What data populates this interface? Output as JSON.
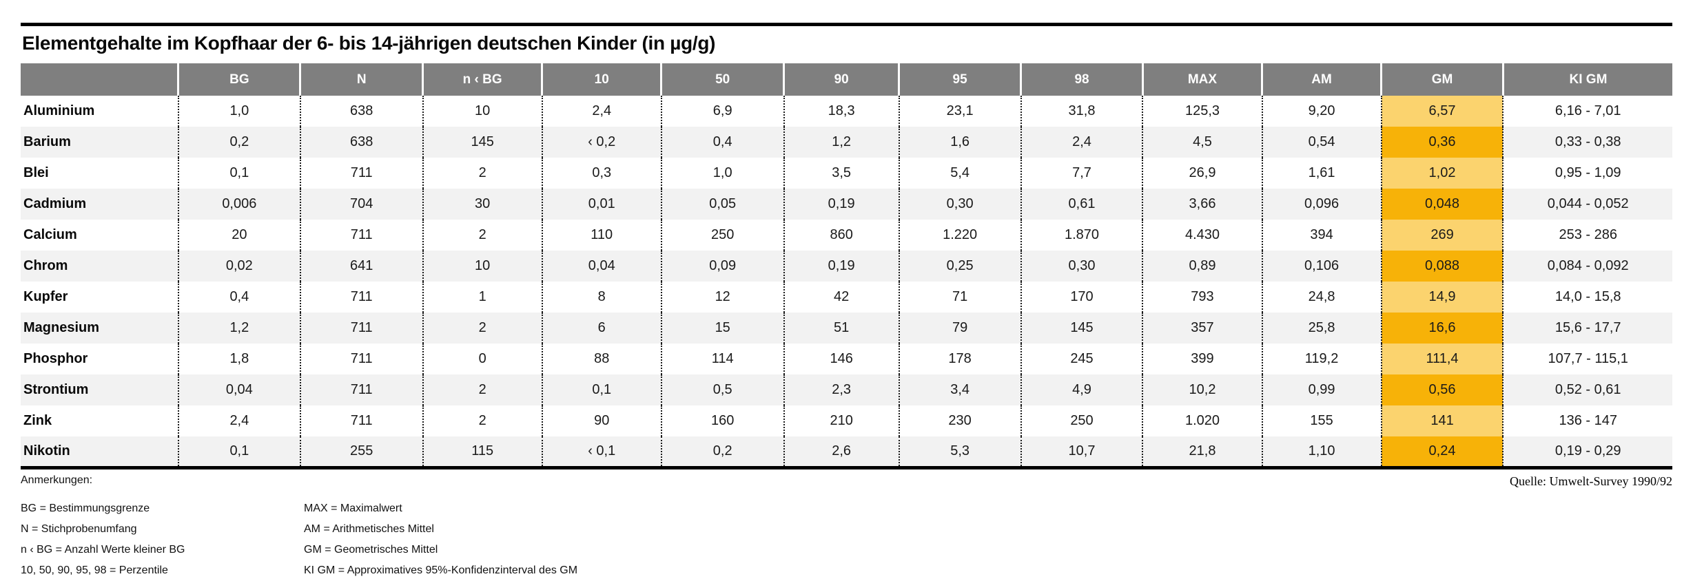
{
  "title": "Elementgehalte im Kopfhaar der 6- bis 14-jährigen deutschen Kinder (in µg/g)",
  "source": "Quelle: Umwelt-Survey 1990/92",
  "colors": {
    "header_bg": "#7f7f7f",
    "row_alt_bg": "#f2f2f2",
    "gm_highlight_light": "#fbd36e",
    "gm_highlight_dark": "#f7b208"
  },
  "table": {
    "columns": [
      "",
      "BG",
      "N",
      "n ‹ BG",
      "10",
      "50",
      "90",
      "95",
      "98",
      "MAX",
      "AM",
      "GM",
      "KI GM"
    ],
    "col_widths_pct": [
      9.55,
      7.38,
      7.42,
      7.22,
      7.22,
      7.42,
      6.97,
      7.38,
      7.38,
      7.22,
      7.22,
      7.38,
      10.24
    ],
    "rows": [
      {
        "name": "Aluminium",
        "values": [
          "1,0",
          "638",
          "10",
          "2,4",
          "6,9",
          "18,3",
          "23,1",
          "31,8",
          "125,3",
          "9,20",
          "6,57",
          "6,16 - 7,01"
        ]
      },
      {
        "name": "Barium",
        "values": [
          "0,2",
          "638",
          "145",
          "‹ 0,2",
          "0,4",
          "1,2",
          "1,6",
          "2,4",
          "4,5",
          "0,54",
          "0,36",
          "0,33 - 0,38"
        ]
      },
      {
        "name": "Blei",
        "values": [
          "0,1",
          "711",
          "2",
          "0,3",
          "1,0",
          "3,5",
          "5,4",
          "7,7",
          "26,9",
          "1,61",
          "1,02",
          "0,95 - 1,09"
        ]
      },
      {
        "name": "Cadmium",
        "values": [
          "0,006",
          "704",
          "30",
          "0,01",
          "0,05",
          "0,19",
          "0,30",
          "0,61",
          "3,66",
          "0,096",
          "0,048",
          "0,044 - 0,052"
        ]
      },
      {
        "name": "Calcium",
        "values": [
          "20",
          "711",
          "2",
          "110",
          "250",
          "860",
          "1.220",
          "1.870",
          "4.430",
          "394",
          "269",
          "253 - 286"
        ]
      },
      {
        "name": "Chrom",
        "values": [
          "0,02",
          "641",
          "10",
          "0,04",
          "0,09",
          "0,19",
          "0,25",
          "0,30",
          "0,89",
          "0,106",
          "0,088",
          "0,084 - 0,092"
        ]
      },
      {
        "name": "Kupfer",
        "values": [
          "0,4",
          "711",
          "1",
          "8",
          "12",
          "42",
          "71",
          "170",
          "793",
          "24,8",
          "14,9",
          "14,0 - 15,8"
        ]
      },
      {
        "name": "Magnesium",
        "values": [
          "1,2",
          "711",
          "2",
          "6",
          "15",
          "51",
          "79",
          "145",
          "357",
          "25,8",
          "16,6",
          "15,6 - 17,7"
        ]
      },
      {
        "name": "Phosphor",
        "values": [
          "1,8",
          "711",
          "0",
          "88",
          "114",
          "146",
          "178",
          "245",
          "399",
          "119,2",
          "111,4",
          "107,7 - 115,1"
        ]
      },
      {
        "name": "Strontium",
        "values": [
          "0,04",
          "711",
          "2",
          "0,1",
          "0,5",
          "2,3",
          "3,4",
          "4,9",
          "10,2",
          "0,99",
          "0,56",
          "0,52 - 0,61"
        ]
      },
      {
        "name": "Zink",
        "values": [
          "2,4",
          "711",
          "2",
          "90",
          "160",
          "210",
          "230",
          "250",
          "1.020",
          "155",
          "141",
          "136 - 147"
        ]
      },
      {
        "name": "Nikotin",
        "values": [
          "0,1",
          "255",
          "115",
          "‹ 0,1",
          "0,2",
          "2,6",
          "5,3",
          "10,7",
          "21,8",
          "1,10",
          "0,24",
          "0,19 - 0,29"
        ]
      }
    ]
  },
  "notes": {
    "heading": "Anmerkungen:",
    "left": [
      "BG = Bestimmungsgrenze",
      "N = Stichprobenumfang",
      "n ‹ BG = Anzahl Werte kleiner BG",
      "10, 50, 90, 95, 98 = Perzentile"
    ],
    "right": [
      "MAX = Maximalwert",
      "AM = Arithmetisches Mittel",
      "GM = Geometrisches Mittel",
      "KI GM = Approximatives 95%-Konfidenzinterval des GM"
    ]
  }
}
